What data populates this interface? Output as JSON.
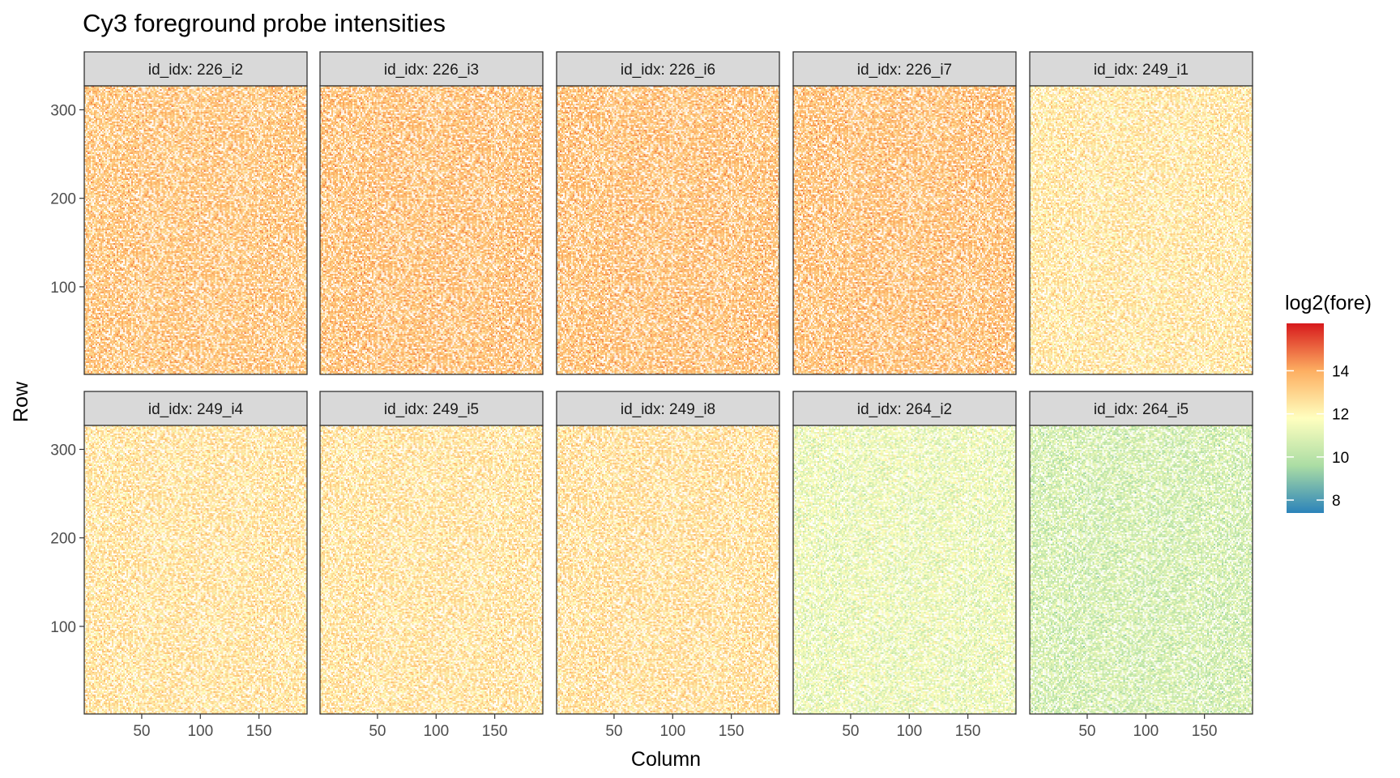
{
  "chart_data": {
    "type": "heatmap",
    "title": "Cy3 foreground probe intensities",
    "xlabel": "Column",
    "ylabel": "Row",
    "xlim": [
      1,
      191
    ],
    "ylim": [
      1,
      327
    ],
    "x_ticks": [
      50,
      100,
      150
    ],
    "y_ticks": [
      100,
      200,
      300
    ],
    "grid": true,
    "facet_strip_prefix": "id_idx: ",
    "panels": [
      {
        "id_idx": "226_i2",
        "approx_mean_log2_fore": 13.4
      },
      {
        "id_idx": "226_i3",
        "approx_mean_log2_fore": 13.5
      },
      {
        "id_idx": "226_i6",
        "approx_mean_log2_fore": 13.5
      },
      {
        "id_idx": "226_i7",
        "approx_mean_log2_fore": 13.5
      },
      {
        "id_idx": "249_i1",
        "approx_mean_log2_fore": 12.5
      },
      {
        "id_idx": "249_i4",
        "approx_mean_log2_fore": 12.6
      },
      {
        "id_idx": "249_i5",
        "approx_mean_log2_fore": 12.6
      },
      {
        "id_idx": "249_i8",
        "approx_mean_log2_fore": 12.7
      },
      {
        "id_idx": "264_i2",
        "approx_mean_log2_fore": 11.3
      },
      {
        "id_idx": "264_i5",
        "approx_mean_log2_fore": 10.7
      }
    ],
    "legend": {
      "title": "log2(fore)",
      "placement": "right",
      "range": [
        7.4,
        16.2
      ],
      "ticks": [
        8,
        10,
        12,
        14
      ],
      "palette": "Spectral",
      "colors": [
        "#2b83ba",
        "#abdda4",
        "#ffffbf",
        "#fdae61",
        "#d7191c"
      ]
    }
  },
  "colors": {
    "strip_fill": "#d9d9d9",
    "panel_border": "#333333",
    "grid": "#ebebeb"
  }
}
